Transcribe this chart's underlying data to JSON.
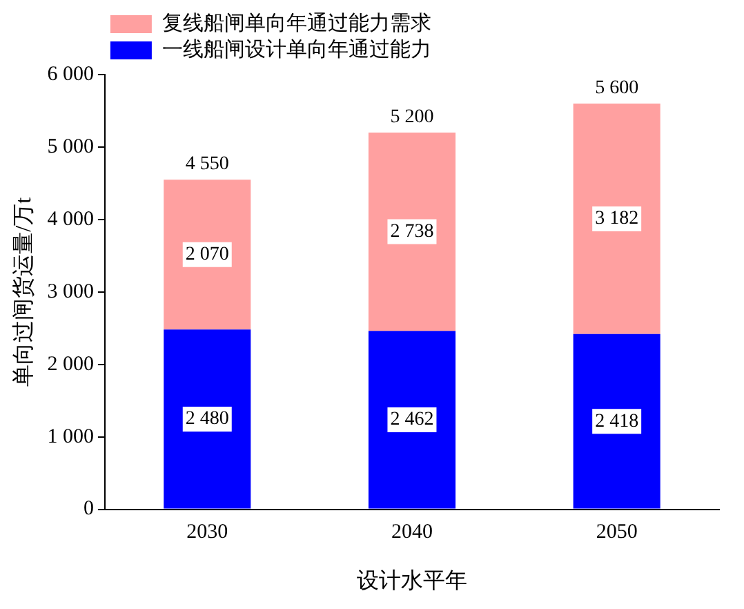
{
  "chart_data": {
    "type": "bar",
    "xlabel": "设计水平年",
    "ylabel": "单向过闸货运量/万t",
    "categories": [
      "2030",
      "2040",
      "2050"
    ],
    "stacked": true,
    "series": [
      {
        "name": "一线船闸设计单向年通过能力",
        "color": "#0000ff",
        "values": [
          2480,
          2462,
          2418
        ],
        "value_labels": [
          "2 480",
          "2 462",
          "2 418"
        ]
      },
      {
        "name": "复线船闸单向年通过能力需求",
        "color": "#ffa0a0",
        "values": [
          2070,
          2738,
          3182
        ],
        "value_labels": [
          "2 070",
          "2 738",
          "3 182"
        ]
      }
    ],
    "totals": [
      "4 550",
      "5 200",
      "5 600"
    ],
    "ylim": [
      0,
      6000
    ],
    "yticks": [
      {
        "value": 0,
        "label": "0"
      },
      {
        "value": 1000,
        "label": "1 000"
      },
      {
        "value": 2000,
        "label": "2 000"
      },
      {
        "value": 3000,
        "label": "3 000"
      },
      {
        "value": 4000,
        "label": "4 000"
      },
      {
        "value": 5000,
        "label": "5 000"
      },
      {
        "value": 6000,
        "label": "6 000"
      }
    ],
    "grid": false,
    "legend": "top left"
  }
}
